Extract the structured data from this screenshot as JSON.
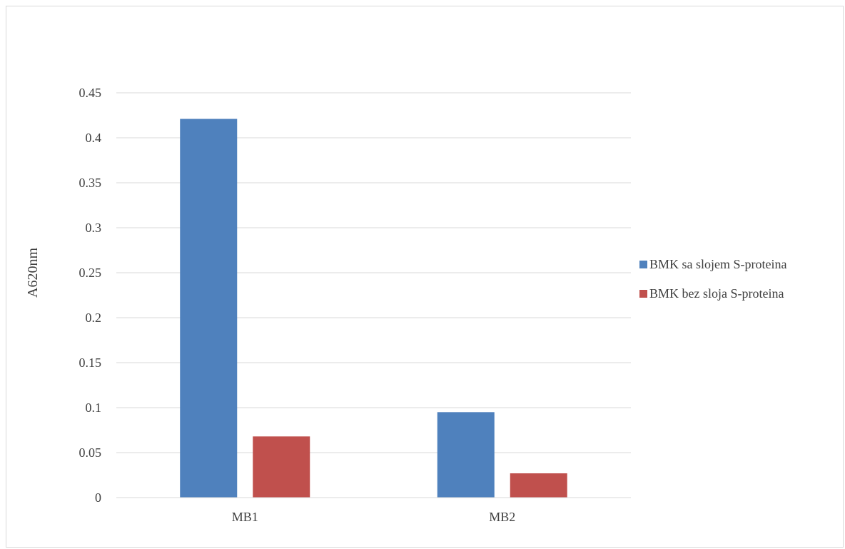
{
  "chart_data": {
    "type": "bar",
    "title": "",
    "xlabel": "",
    "ylabel": "A620nm",
    "ylim": [
      0,
      0.45
    ],
    "yticks": [
      "0",
      "0.05",
      "0.1",
      "0.15",
      "0.2",
      "0.25",
      "0.3",
      "0.35",
      "0.4",
      "0.45"
    ],
    "categories": [
      "MB1",
      "MB2"
    ],
    "grid": true,
    "legend_position": "right",
    "series": [
      {
        "name": "BMK sa slojem S-proteina",
        "color": "#4f81bd",
        "values": [
          0.421,
          0.095
        ]
      },
      {
        "name": "BMK bez sloja S-proteina",
        "color": "#c0504d",
        "values": [
          0.068,
          0.027
        ]
      }
    ]
  }
}
